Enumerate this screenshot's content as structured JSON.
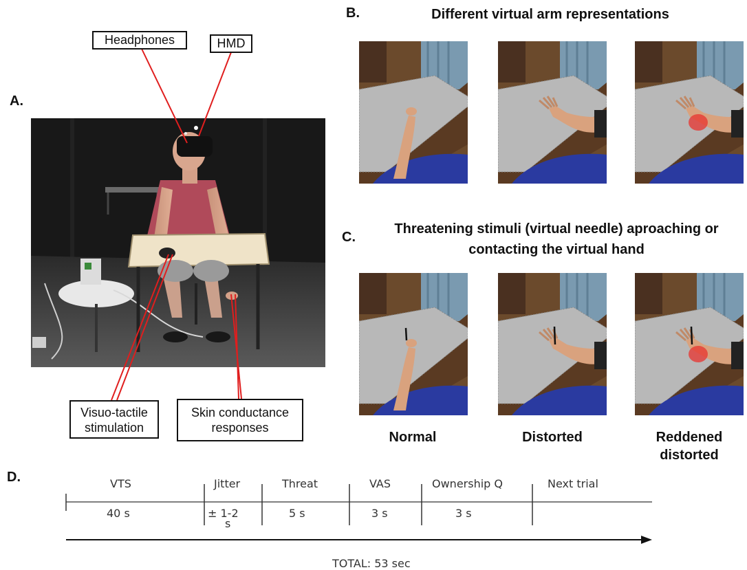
{
  "panel_a": {
    "letter": "A.",
    "callouts": {
      "headphones": "Headphones",
      "hmd": "HMD",
      "visuo_tactile_line1": "Visuo-tactile",
      "visuo_tactile_line2": "stimulation",
      "skin_line1": "Skin conductance",
      "skin_line2": "responses"
    },
    "colors": {
      "pointer": "#e01e1e",
      "shirt": "#b04a5a",
      "background": "#141414"
    }
  },
  "panel_b": {
    "letter": "B.",
    "title": "Different virtual arm representations"
  },
  "panel_c": {
    "letter": "C.",
    "title_line1": "Threatening stimuli (virtual needle) aproaching or",
    "title_line2": "contacting the virtual hand"
  },
  "conditions": {
    "normal": "Normal",
    "distorted": "Distorted",
    "reddened_line1": "Reddened",
    "reddened_line2": "distorted"
  },
  "panel_d": {
    "letter": "D.",
    "phases": [
      {
        "name": "VTS",
        "duration": "40 s"
      },
      {
        "name": "Jitter",
        "duration": "± 1-2",
        "duration_line2": "s"
      },
      {
        "name": "Threat",
        "duration": "5 s"
      },
      {
        "name": "VAS",
        "duration": "3 s"
      },
      {
        "name": "Ownership Q",
        "duration": "3 s"
      },
      {
        "name": "Next trial",
        "duration": ""
      }
    ],
    "total": "TOTAL: 53 sec"
  }
}
